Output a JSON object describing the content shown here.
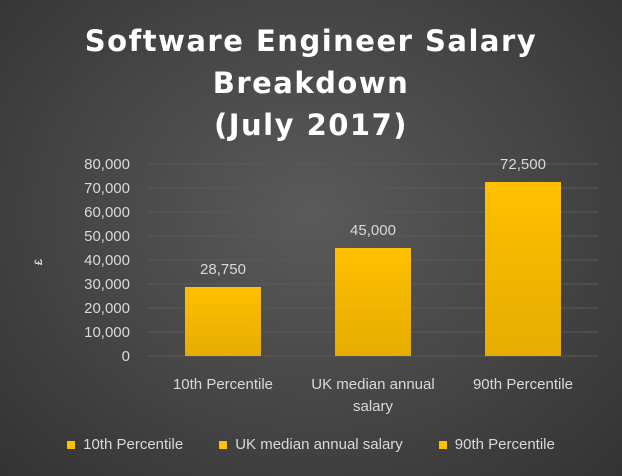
{
  "chart_data": {
    "type": "bar",
    "title": "Software Engineer Salary Breakdown (July 2017)",
    "title_lines": [
      "Software Engineer Salary",
      "Breakdown",
      "(July 2017)"
    ],
    "ylabel": "£",
    "xlabel": "",
    "categories": [
      "10th Percentile",
      "UK median annual salary",
      "90th Percentile"
    ],
    "category_label_lines": [
      [
        "10th Percentile"
      ],
      [
        "UK median annual",
        "salary"
      ],
      [
        "90th Percentile"
      ]
    ],
    "values": [
      28750,
      45000,
      72500
    ],
    "data_labels": [
      "28,750",
      "45,000",
      "72,500"
    ],
    "ylim": [
      0,
      80000
    ],
    "yticks": [
      0,
      10000,
      20000,
      30000,
      40000,
      50000,
      60000,
      70000,
      80000
    ],
    "ytick_labels": [
      "0",
      "10,000",
      "20,000",
      "30,000",
      "40,000",
      "50,000",
      "60,000",
      "70,000",
      "80,000"
    ],
    "grid": true,
    "legend": [
      "10th Percentile",
      "UK median annual salary",
      "90th Percentile"
    ],
    "legend_position": "bottom",
    "colors": {
      "bar": "#ffc000",
      "bar_dark": "#e6ac00",
      "background": "#404040",
      "gridline": "#595959",
      "text": "#d9d9d9",
      "title": "#ffffff"
    }
  }
}
